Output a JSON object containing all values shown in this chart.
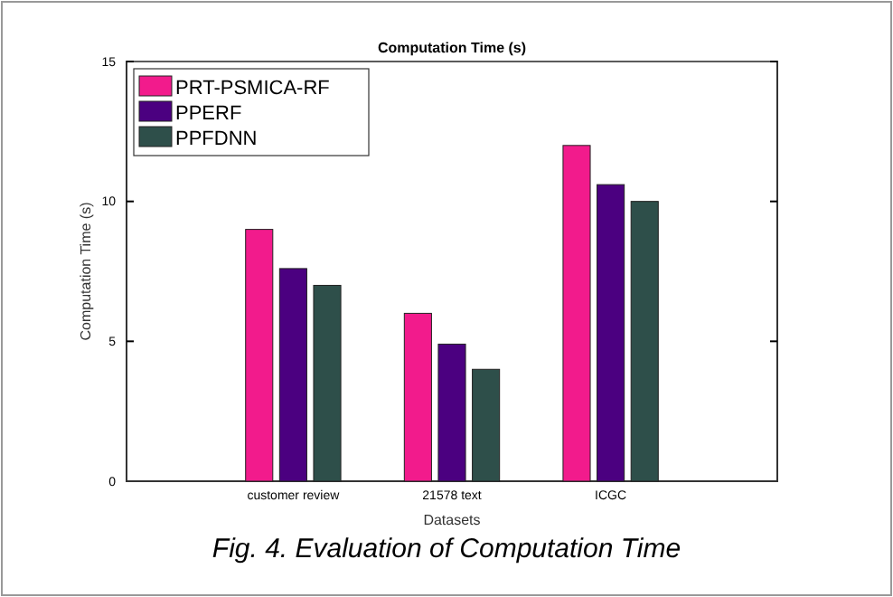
{
  "chart_data": {
    "type": "bar",
    "title": "Computation Time (s)",
    "xlabel": "Datasets",
    "ylabel": "Computation Time (s)",
    "categories": [
      "customer review",
      "21578 text",
      "ICGC"
    ],
    "series": [
      {
        "name": "PRT-PSMICA-RF",
        "color": "#f21b8c",
        "values": [
          9,
          6,
          12
        ]
      },
      {
        "name": "PPERF",
        "color": "#4b0080",
        "values": [
          7.6,
          4.9,
          10.6
        ]
      },
      {
        "name": "PPFDNN",
        "color": "#2e4f4a",
        "values": [
          7,
          4,
          10
        ]
      }
    ],
    "ylim": [
      0,
      15
    ],
    "yticks": [
      0,
      5,
      10,
      15
    ],
    "grid": false,
    "legend": "top left",
    "annotations": [
      "Fig. 4. Evaluation of Computation Time"
    ]
  }
}
